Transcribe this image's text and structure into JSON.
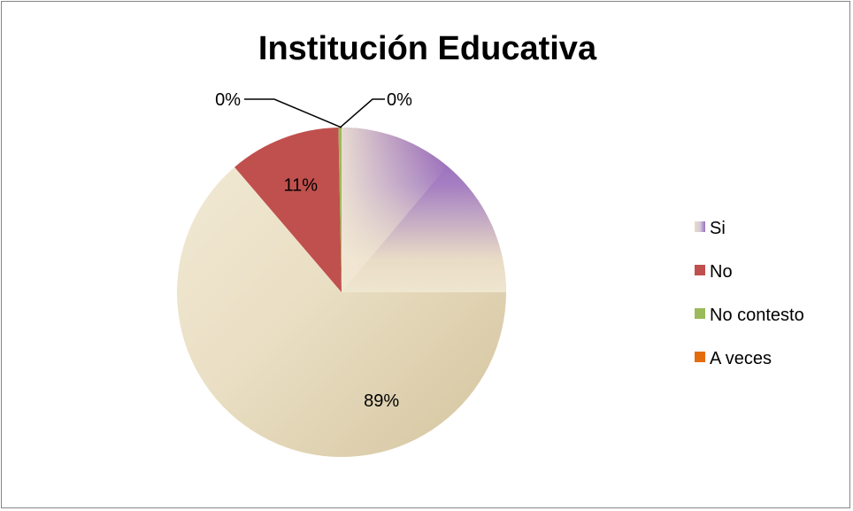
{
  "chart_data": {
    "type": "pie",
    "title": "Institución Educativa",
    "legend_position": "right",
    "slices": [
      {
        "label": "Si",
        "value": 89,
        "display": "89%",
        "color": "#e8dcc0"
      },
      {
        "label": "No",
        "value": 11,
        "display": "11%",
        "color": "#c0504d"
      },
      {
        "label": "No contesto",
        "value": 0.3,
        "display": "0%",
        "color": "#9bbb59"
      },
      {
        "label": "A veces",
        "value": 0,
        "display": "0%",
        "color": "#e46c0a"
      }
    ]
  }
}
